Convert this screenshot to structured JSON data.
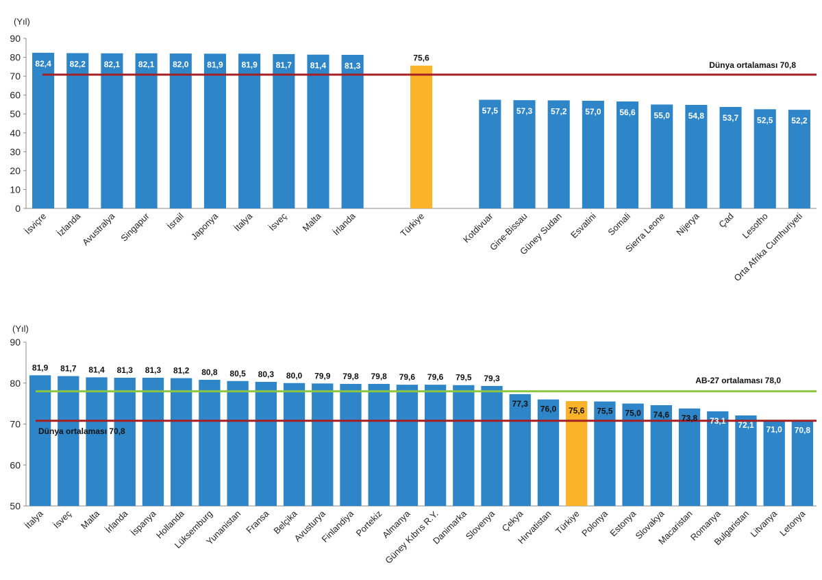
{
  "colors": {
    "bar": "#2E86C8",
    "highlight_bar": "#FBB42A",
    "world_line": "#A31F24",
    "eu_line": "#8CC63F",
    "axis": "#888888",
    "label_inside": "#ffffff",
    "label_outside": "#111111"
  },
  "chart_data": [
    {
      "type": "bar",
      "unit_label": "(Yıl)",
      "ylim": [
        0,
        90
      ],
      "yticks": [
        "0",
        "10",
        "20",
        "30",
        "40",
        "50",
        "60",
        "70",
        "80",
        "90"
      ],
      "highlight": "Türkiye",
      "categories": [
        "İsviçre",
        "İzlanda",
        "Avustralya",
        "Singapur",
        "İsrail",
        "Japonya",
        "İtalya",
        "İsveç",
        "Malta",
        "İrlanda",
        "",
        "Türkiye",
        "",
        "Kotdivuar",
        "Gine-Bissau",
        "Güney Sudan",
        "Esvatini",
        "Somali",
        "Sierra Leone",
        "Nijerya",
        "Çad",
        "Lesotho",
        "Orta Afrika Cumhuriyeti"
      ],
      "values": [
        82.4,
        82.2,
        82.1,
        82.1,
        82.0,
        81.9,
        81.9,
        81.7,
        81.4,
        81.3,
        null,
        75.6,
        null,
        57.5,
        57.3,
        57.2,
        57.0,
        56.6,
        55.0,
        54.8,
        53.7,
        52.5,
        52.2
      ],
      "value_labels": [
        "82,4",
        "82,2",
        "82,1",
        "82,1",
        "82,0",
        "81,9",
        "81,9",
        "81,7",
        "81,4",
        "81,3",
        "",
        "75,6",
        "",
        "57,5",
        "57,3",
        "57,2",
        "57,0",
        "56,6",
        "55,0",
        "54,8",
        "53,7",
        "52,5",
        "52,2"
      ],
      "reference_lines": [
        {
          "name": "Dünya ortalaması",
          "value": 70.8,
          "label": "Dünya ortalaması   70,8",
          "color_key": "world_line"
        }
      ]
    },
    {
      "type": "bar",
      "unit_label": "(Yıl)",
      "ylim": [
        50,
        90
      ],
      "yticks": [
        "50",
        "60",
        "70",
        "80",
        "90"
      ],
      "highlight": "Türkiye",
      "categories": [
        "İtalya",
        "İsveç",
        "Malta",
        "İrlanda",
        "İspanya",
        "Hollanda",
        "Lüksemburg",
        "Yunanistan",
        "Fransa",
        "Belçika",
        "Avusturya",
        "Finlandiya",
        "Portekiz",
        "Almanya",
        "Güney Kıbrıs R.Y.",
        "Danimarka",
        "Slovenya",
        "Çekya",
        "Hırvatistan",
        "Türkiye",
        "Polonya",
        "Estonya",
        "Slovakya",
        "Macaristan",
        "Romanya",
        "Bulgaristan",
        "Litvanya",
        "Letonya"
      ],
      "values": [
        81.9,
        81.7,
        81.4,
        81.3,
        81.3,
        81.2,
        80.8,
        80.5,
        80.3,
        80.0,
        79.9,
        79.8,
        79.8,
        79.6,
        79.6,
        79.5,
        79.3,
        77.3,
        76.0,
        75.6,
        75.5,
        75.0,
        74.6,
        73.8,
        73.1,
        72.1,
        71.0,
        70.8
      ],
      "value_labels": [
        "81,9",
        "81,7",
        "81,4",
        "81,3",
        "81,3",
        "81,2",
        "80,8",
        "80,5",
        "80,3",
        "80,0",
        "79,9",
        "79,8",
        "79,8",
        "79,6",
        "79,6",
        "79,5",
        "79,3",
        "77,3",
        "76,0",
        "75,6",
        "75,5",
        "75,0",
        "74,6",
        "73,8",
        "73,1",
        "72,1",
        "71,0",
        "70,8"
      ],
      "reference_lines": [
        {
          "name": "AB-27 ortalaması",
          "value": 78.0,
          "label": "AB-27 ortalaması   78,0",
          "color_key": "eu_line"
        },
        {
          "name": "Dünya ortalaması",
          "value": 70.8,
          "label": "Dünya ortalaması   70,8",
          "color_key": "world_line"
        }
      ]
    }
  ]
}
